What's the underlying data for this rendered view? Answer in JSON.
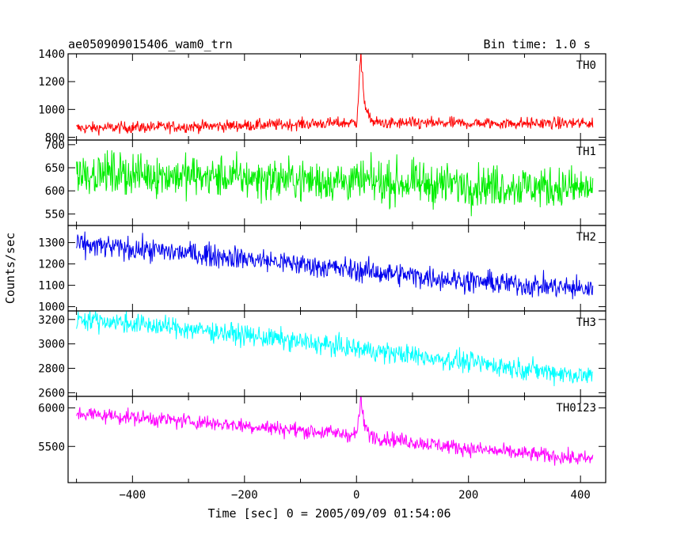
{
  "chart_data": {
    "type": "line",
    "title": "ae050909015406_wam0_trn",
    "subtitle": "Bin time: 1.0 s",
    "xlabel": "Time [sec] 0 = 2005/09/09 01:54:06",
    "ylabel": "Counts/sec",
    "xlim": [
      -515,
      445
    ],
    "x_ticks": [
      -400,
      -200,
      0,
      200,
      400
    ],
    "x_tick_labels": [
      "−400",
      "−200",
      "0",
      "200",
      "400"
    ],
    "x_data_range": [
      -500,
      422
    ],
    "burst": {
      "x_start": 0,
      "x_peak": 8,
      "x_end": 40
    },
    "panels": [
      {
        "name": "TH0",
        "color": "#ff0000",
        "ylim": [
          780,
          1400
        ],
        "y_ticks": [
          800,
          1000,
          1200,
          1400
        ],
        "trend": [
          [
            -500,
            865
          ],
          [
            -250,
            880
          ],
          [
            0,
            905
          ],
          [
            40,
            900
          ],
          [
            422,
            900
          ]
        ],
        "noise": 30,
        "burst_peak": 1400
      },
      {
        "name": "TH1",
        "color": "#00ee00",
        "ylim": [
          525,
          710
        ],
        "y_ticks": [
          550,
          600,
          650,
          700
        ],
        "trend": [
          [
            -500,
            640
          ],
          [
            -250,
            630
          ],
          [
            0,
            620
          ],
          [
            422,
            605
          ]
        ],
        "noise": 32,
        "burst_peak": null
      },
      {
        "name": "TH2",
        "color": "#0000ee",
        "ylim": [
          980,
          1380
        ],
        "y_ticks": [
          1000,
          1100,
          1200,
          1300
        ],
        "trend": [
          [
            -500,
            1290
          ],
          [
            -250,
            1240
          ],
          [
            0,
            1170
          ],
          [
            200,
            1120
          ],
          [
            422,
            1080
          ]
        ],
        "noise": 38,
        "burst_peak": null
      },
      {
        "name": "TH3",
        "color": "#00ffff",
        "ylim": [
          2570,
          3270
        ],
        "y_ticks": [
          2600,
          2800,
          3000,
          3200
        ],
        "trend": [
          [
            -500,
            3210
          ],
          [
            -250,
            3100
          ],
          [
            0,
            2960
          ],
          [
            200,
            2850
          ],
          [
            422,
            2730
          ]
        ],
        "noise": 60,
        "burst_peak": null
      },
      {
        "name": "TH0123",
        "color": "#ff00ff",
        "ylim": [
          5030,
          6150
        ],
        "y_ticks": [
          5500,
          6000
        ],
        "trend": [
          [
            -500,
            5930
          ],
          [
            -250,
            5800
          ],
          [
            0,
            5650
          ],
          [
            200,
            5470
          ],
          [
            422,
            5330
          ]
        ],
        "noise": 70,
        "burst_peak": 6110
      }
    ]
  }
}
